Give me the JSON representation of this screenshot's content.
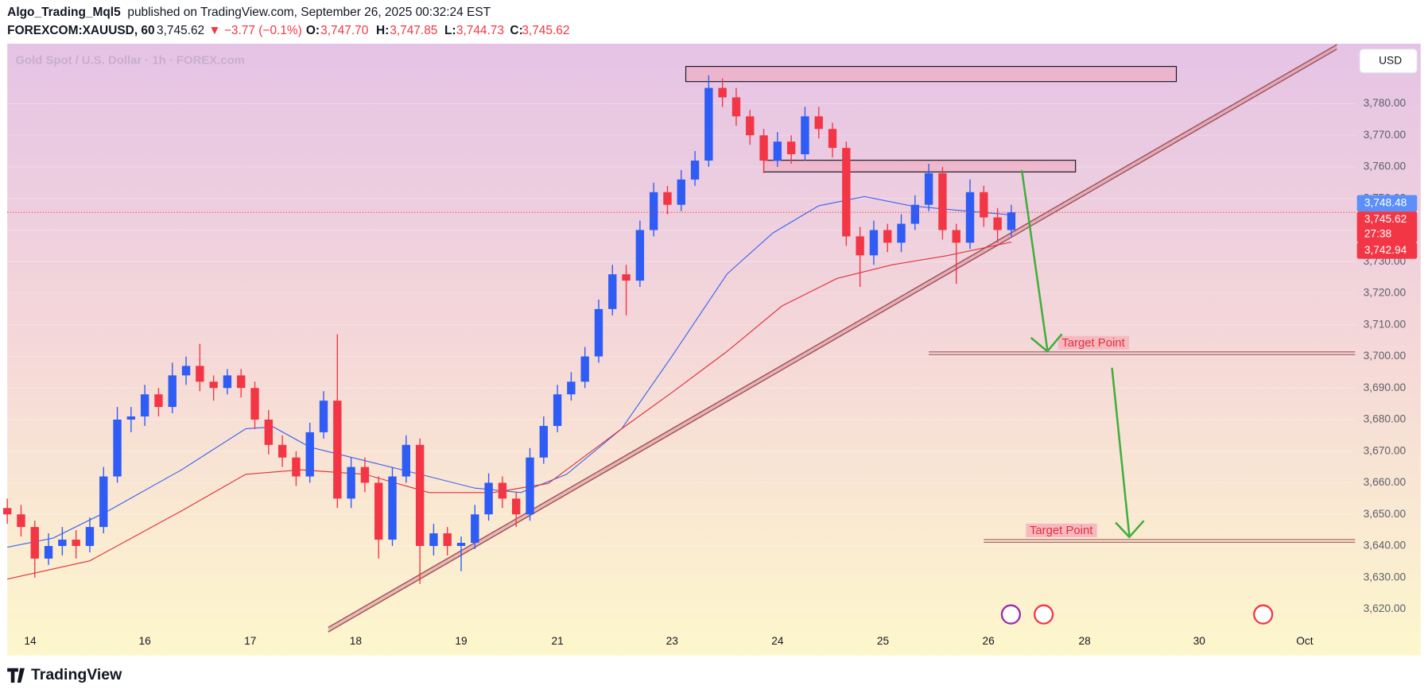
{
  "header": {
    "author": "Algo_Trading_Mql5",
    "published": "published on TradingView.com, September 26, 2025 00:32:24 EST",
    "symbol": "FOREXCOM:XAUUSD, 60",
    "price": "3,745.62",
    "change": "▼ −3.77 (−0.1%)",
    "o_label": "O:",
    "o": "3,747.70",
    "h_label": "H:",
    "h": "3,747.85",
    "l_label": "L:",
    "l": "3,744.73",
    "c_label": "C:",
    "c": "3,745.62",
    "watermark": "Gold Spot / U.S. Dollar · 1h · FOREX.com",
    "currency": "USD",
    "logo": "TradingView"
  },
  "chart_data": {
    "type": "candlestick",
    "up_color": "#2f5cf5",
    "down_color": "#f23645",
    "xlim": [
      0,
      294
    ],
    "ylim": [
      3614,
      3799
    ],
    "xticks": [
      {
        "value": 5,
        "label": "14"
      },
      {
        "value": 30,
        "label": "16"
      },
      {
        "value": 53,
        "label": "17"
      },
      {
        "value": 76,
        "label": "18"
      },
      {
        "value": 99,
        "label": "19"
      },
      {
        "value": 120,
        "label": "21"
      },
      {
        "value": 145,
        "label": "23"
      },
      {
        "value": 168,
        "label": "24"
      },
      {
        "value": 191,
        "label": "25"
      },
      {
        "value": 214,
        "label": "26"
      },
      {
        "value": 235,
        "label": "28"
      },
      {
        "value": 260,
        "label": "30"
      },
      {
        "value": 283,
        "label": "Oct"
      }
    ],
    "yticks": [
      {
        "value": 3620,
        "label": "3,620.00"
      },
      {
        "value": 3630,
        "label": "3,630.00"
      },
      {
        "value": 3640,
        "label": "3,640.00"
      },
      {
        "value": 3650,
        "label": "3,650.00"
      },
      {
        "value": 3660,
        "label": "3,660.00"
      },
      {
        "value": 3670,
        "label": "3,670.00"
      },
      {
        "value": 3680,
        "label": "3,680.00"
      },
      {
        "value": 3690,
        "label": "3,690.00"
      },
      {
        "value": 3700,
        "label": "3,700.00"
      },
      {
        "value": 3710,
        "label": "3,710.00"
      },
      {
        "value": 3720,
        "label": "3,720.00"
      },
      {
        "value": 3730,
        "label": "3,730.00"
      },
      {
        "value": 3740,
        "label": "3,740.00"
      },
      {
        "value": 3750,
        "label": "3,750.00"
      },
      {
        "value": 3760,
        "label": "3,760.00"
      },
      {
        "value": 3770,
        "label": "3,770.00"
      },
      {
        "value": 3780,
        "label": "3,780.00"
      }
    ],
    "candles": {
      "x": [
        0,
        3,
        6,
        9,
        12,
        15,
        18,
        21,
        24,
        27,
        30,
        33,
        36,
        39,
        42,
        45,
        48,
        51,
        54,
        57,
        60,
        63,
        66,
        69,
        72,
        75,
        78,
        81,
        84,
        87,
        90,
        93,
        96,
        99,
        102,
        105,
        108,
        111,
        114,
        117,
        120,
        123,
        126,
        129,
        132,
        135,
        138,
        141,
        144,
        147,
        150,
        153,
        156,
        159,
        162,
        165,
        168,
        171,
        174,
        177,
        180,
        183,
        186,
        189,
        192,
        195,
        198,
        201,
        204,
        207,
        210,
        213,
        216,
        219
      ],
      "open": [
        3652,
        3650,
        3646,
        3636,
        3640,
        3642,
        3640,
        3646,
        3662,
        3680,
        3681,
        3688,
        3684,
        3694,
        3697,
        3692,
        3690,
        3694,
        3690,
        3680,
        3672,
        3668,
        3662,
        3676,
        3686,
        3655,
        3665,
        3660,
        3642,
        3662,
        3672,
        3640,
        3644,
        3640,
        3641,
        3650,
        3660,
        3655,
        3650,
        3668,
        3678,
        3688,
        3692,
        3700,
        3715,
        3726,
        3724,
        3740,
        3752,
        3748,
        3756,
        3762,
        3785,
        3782,
        3776,
        3770,
        3762,
        3768,
        3764,
        3776,
        3772,
        3766,
        3738,
        3732,
        3740,
        3736,
        3742,
        3748,
        3758,
        3740,
        3736,
        3752,
        3744,
        3740
      ],
      "high": [
        3655,
        3653,
        3648,
        3644,
        3646,
        3645,
        3649,
        3665,
        3684,
        3684,
        3691,
        3690,
        3698,
        3700,
        3704,
        3694,
        3696,
        3696,
        3692,
        3683,
        3675,
        3670,
        3679,
        3689,
        3707,
        3668,
        3668,
        3662,
        3665,
        3675,
        3674,
        3647,
        3646,
        3643,
        3653,
        3663,
        3662,
        3657,
        3671,
        3681,
        3691,
        3695,
        3703,
        3718,
        3729,
        3729,
        3743,
        3755,
        3754,
        3759,
        3765,
        3789,
        3788,
        3785,
        3778,
        3772,
        3771,
        3770,
        3779,
        3779,
        3774,
        3768,
        3741,
        3743,
        3742,
        3745,
        3751,
        3761,
        3760,
        3742,
        3756,
        3754,
        3747,
        3748
      ],
      "low": [
        3647,
        3643,
        3630,
        3634,
        3637,
        3636,
        3638,
        3644,
        3660,
        3676,
        3678,
        3681,
        3682,
        3691,
        3689,
        3686,
        3688,
        3687,
        3677,
        3669,
        3665,
        3659,
        3660,
        3674,
        3652,
        3652,
        3657,
        3636,
        3640,
        3660,
        3628,
        3637,
        3637,
        3632,
        3639,
        3648,
        3652,
        3646,
        3648,
        3666,
        3676,
        3686,
        3690,
        3698,
        3713,
        3713,
        3722,
        3738,
        3745,
        3746,
        3754,
        3760,
        3779,
        3773,
        3767,
        3758,
        3760,
        3761,
        3762,
        3769,
        3763,
        3735,
        3722,
        3729,
        3733,
        3733,
        3740,
        3746,
        3737,
        3723,
        3734,
        3741,
        3736,
        3738
      ],
      "close": [
        3650,
        3646,
        3636,
        3640,
        3642,
        3640,
        3646,
        3662,
        3680,
        3681,
        3688,
        3684,
        3694,
        3697,
        3692,
        3690,
        3694,
        3690,
        3680,
        3672,
        3668,
        3662,
        3676,
        3686,
        3655,
        3665,
        3660,
        3642,
        3662,
        3672,
        3640,
        3644,
        3640,
        3641,
        3650,
        3660,
        3655,
        3650,
        3668,
        3678,
        3688,
        3692,
        3700,
        3715,
        3726,
        3724,
        3740,
        3752,
        3748,
        3756,
        3762,
        3785,
        3782,
        3776,
        3770,
        3762,
        3768,
        3764,
        3776,
        3772,
        3766,
        3738,
        3732,
        3740,
        3736,
        3742,
        3748,
        3758,
        3740,
        3736,
        3752,
        3744,
        3740,
        3745.62
      ]
    },
    "lines": [
      {
        "color": "#3d63f0",
        "x": [
          0,
          10,
          22,
          38,
          52,
          58,
          66,
          78,
          90,
          102,
          112,
          122,
          134,
          145,
          157,
          167,
          177,
          187,
          197,
          207,
          219
        ],
        "values": [
          3639.6,
          3642.5,
          3651.1,
          3664.1,
          3677.1,
          3677.7,
          3671.3,
          3667.0,
          3662.7,
          3658.3,
          3656.9,
          3662.7,
          3677.1,
          3700.1,
          3726.1,
          3739.1,
          3747.7,
          3750.6,
          3747.7,
          3746.3,
          3744.8
        ]
      },
      {
        "color": "#e0323c",
        "x": [
          0,
          18,
          38,
          52,
          64,
          78,
          92,
          106,
          118,
          134,
          145,
          157,
          169,
          181,
          193,
          205,
          219
        ],
        "values": [
          3629.5,
          3635.3,
          3651.1,
          3662.7,
          3664.1,
          3662.7,
          3656.9,
          3656.9,
          3659.8,
          3677.1,
          3688.6,
          3701.6,
          3716.0,
          3724.7,
          3729.0,
          3731.9,
          3736.2
        ]
      }
    ],
    "trendline": {
      "x": [
        70,
        290
      ],
      "y": [
        3614.2,
        3798.7
      ]
    },
    "zones": [
      {
        "x": [
          148,
          255
        ],
        "y": [
          3791.8,
          3787.0
        ]
      },
      {
        "x": [
          165,
          233
        ],
        "y": [
          3762.1,
          3758.4
        ]
      }
    ],
    "targets": [
      {
        "label": "Target Point",
        "value": 3701.0,
        "x": [
          201,
          294
        ],
        "label_x": 230
      },
      {
        "label": "Target Point",
        "value": 3641.6,
        "x": [
          213,
          294
        ],
        "label_x": 223
      }
    ],
    "current_price": 3745.62,
    "price_labels": [
      {
        "value": 3748.48,
        "label": "3,748.48",
        "color": "#5b8ff9"
      },
      {
        "value": 3745.62,
        "label": "3,745.62",
        "color": "#f23645",
        "countdown": "27:38"
      },
      {
        "value": 3742.94,
        "label": "3,742.94",
        "color": "#f23645"
      }
    ]
  }
}
